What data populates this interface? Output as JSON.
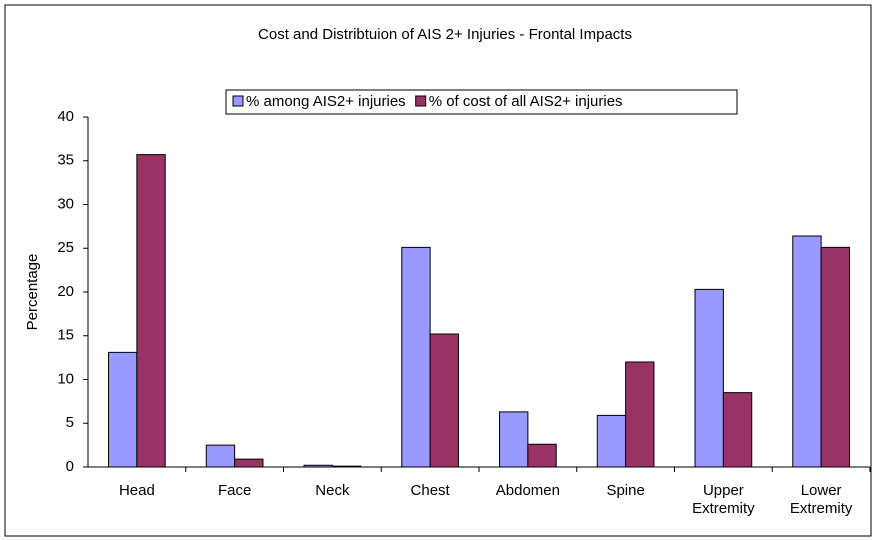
{
  "chart_data": {
    "type": "bar",
    "title": "Cost and Distribtuion of AIS 2+ Injuries  - Frontal Impacts",
    "y_label": "Percentage",
    "categories": [
      "Head",
      "Face",
      "Neck",
      "Chest",
      "Abdomen",
      "Spine",
      "Upper Extremity",
      "Lower Extremity"
    ],
    "series": [
      {
        "name": "% among AIS2+ injuries",
        "color": "#9999ff",
        "values": [
          13.1,
          2.5,
          0.2,
          25.1,
          6.3,
          5.9,
          20.3,
          26.4
        ]
      },
      {
        "name": "% of cost of all AIS2+ injuries",
        "color": "#993366",
        "values": [
          35.7,
          0.9,
          0.1,
          15.2,
          2.6,
          12.0,
          8.5,
          25.1
        ]
      }
    ],
    "ylim": [
      0,
      40
    ],
    "yticks": [
      0,
      5,
      10,
      15,
      20,
      25,
      30,
      35,
      40
    ],
    "legend": "top"
  }
}
